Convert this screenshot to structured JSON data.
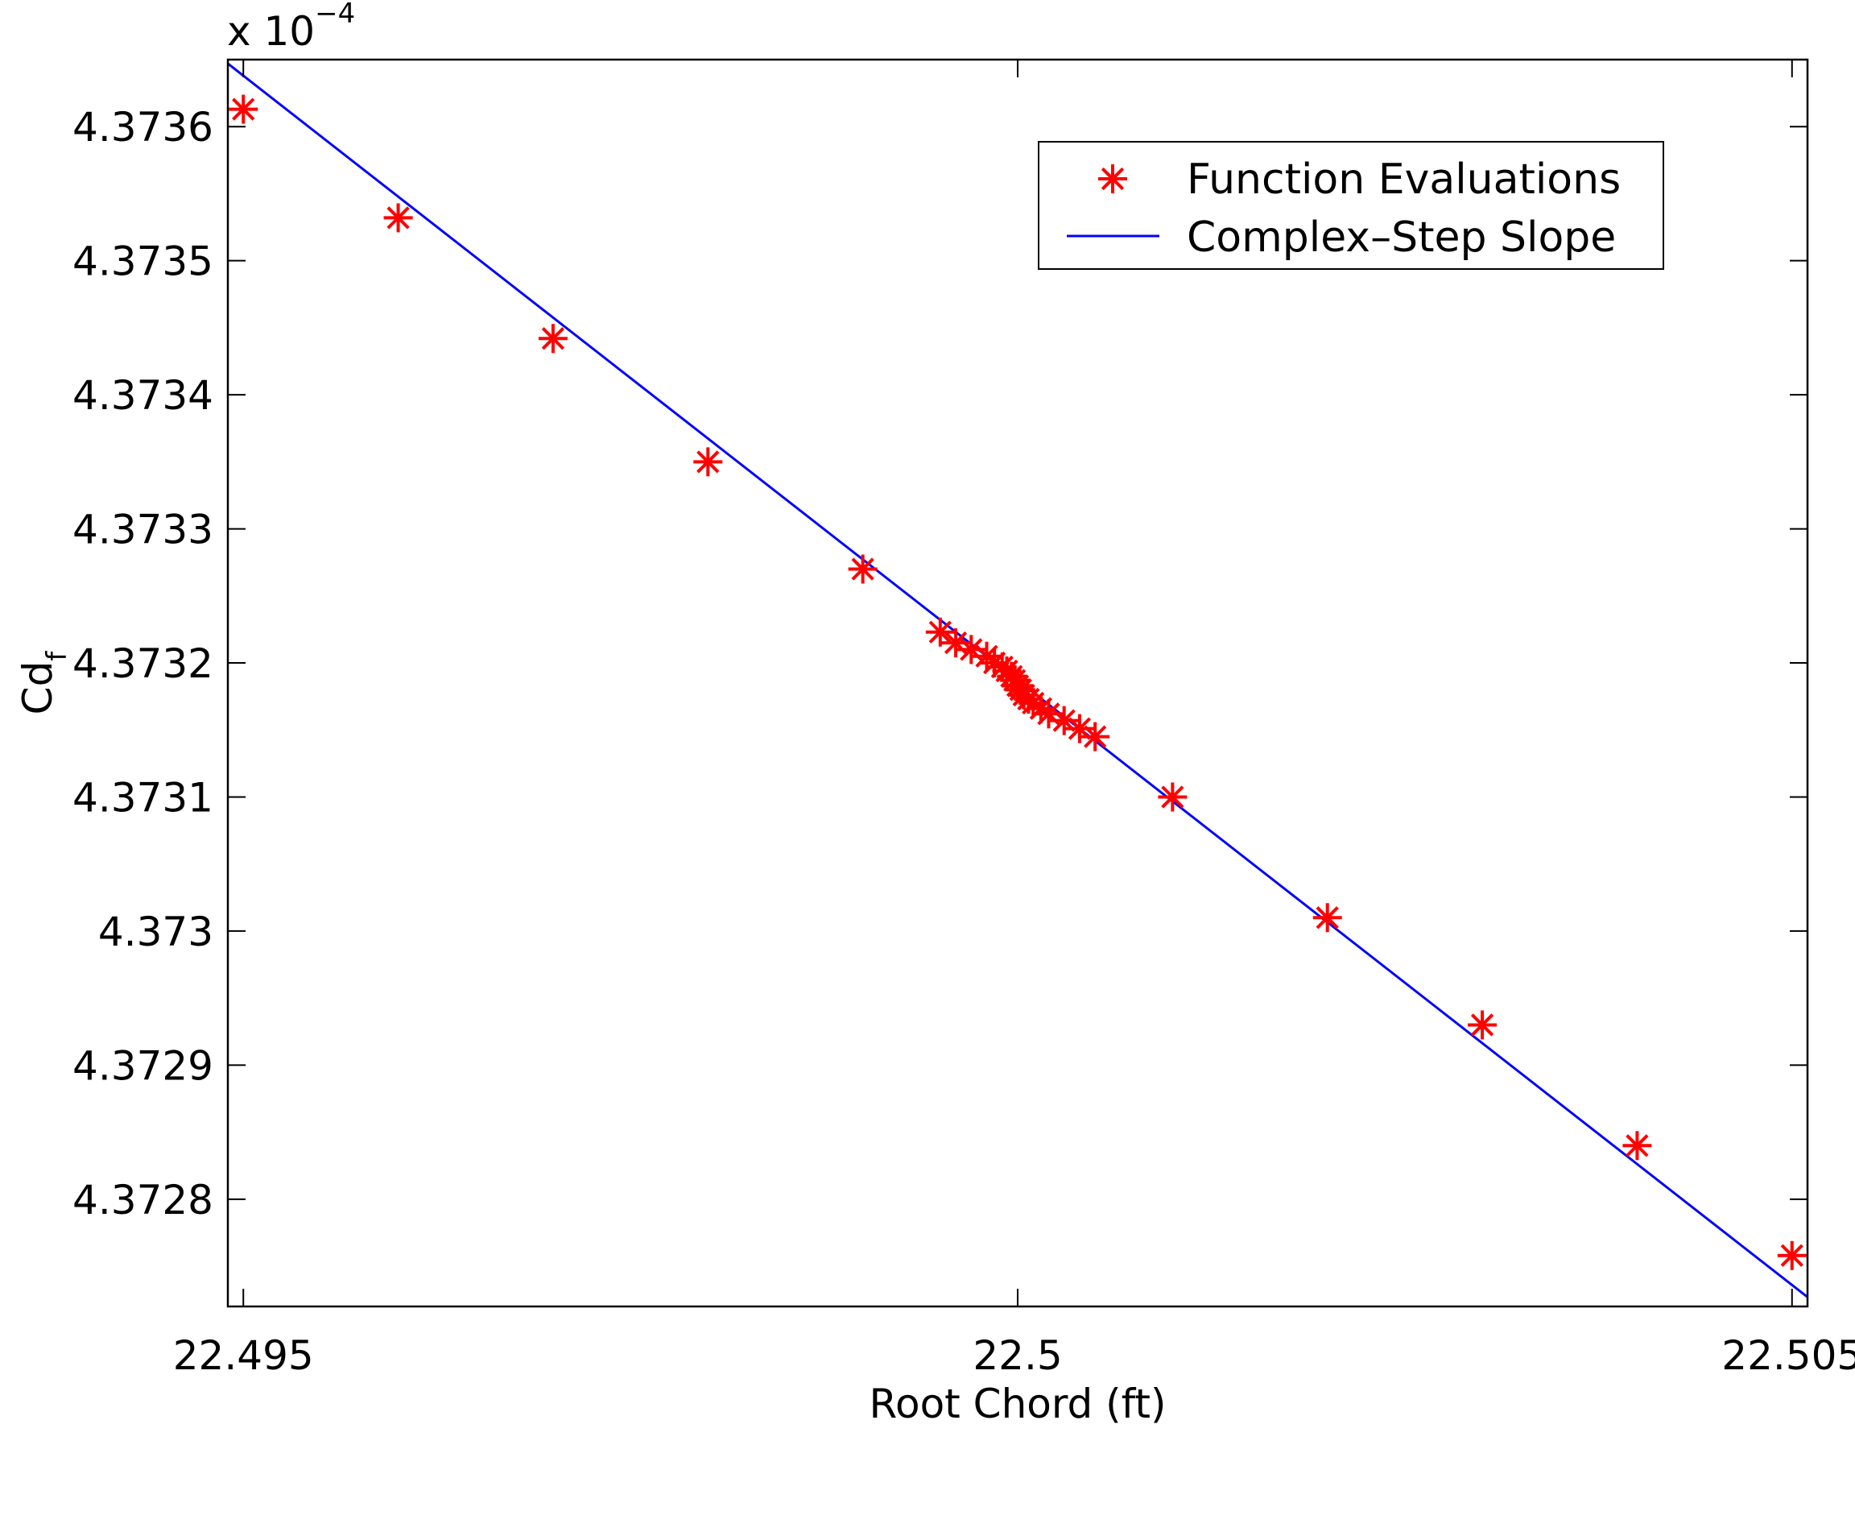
{
  "chart_data": {
    "type": "scatter",
    "title": "",
    "xlabel": "Root Chord (ft)",
    "ylabel_main": "Cd",
    "ylabel_sub": "f",
    "xlim": [
      22.4949,
      22.5051
    ],
    "ylim": [
      0.000437272,
      0.000437365
    ],
    "grid": false,
    "legend_position": "top-right",
    "y_scale_text": "x 10",
    "y_scale_exponent": "−4",
    "x_ticks": [
      22.495,
      22.5,
      22.505
    ],
    "x_tick_labels": [
      "22.495",
      "22.5",
      "22.505"
    ],
    "y_ticks": [
      0.00043728,
      0.00043729,
      0.0004373,
      0.00043731,
      0.00043732,
      0.00043733,
      0.00043734,
      0.00043735,
      0.00043736
    ],
    "y_tick_labels": [
      "4.3728",
      "4.3729",
      "4.373",
      "4.3731",
      "4.3732",
      "4.3733",
      "4.3734",
      "4.3735",
      "4.3736"
    ],
    "series": [
      {
        "name": "Function Evaluations",
        "marker": "asterisk",
        "color": "#ff0000",
        "x": [
          22.495,
          22.496,
          22.497,
          22.498,
          22.499,
          22.4995,
          22.4996,
          22.4997,
          22.4998,
          22.49985,
          22.4999,
          22.49993,
          22.49996,
          22.49998,
          22.5,
          22.50002,
          22.50004,
          22.50007,
          22.5001,
          22.50015,
          22.5002,
          22.5003,
          22.5004,
          22.5005,
          22.501,
          22.502,
          22.503,
          22.504,
          22.505
        ],
        "y": [
          0.0004373613,
          0.0004373532,
          0.0004373442,
          0.000437335,
          0.000437327,
          0.0004373223,
          0.0004373215,
          0.000437321,
          0.0004373205,
          0.00043732,
          0.0004373197,
          0.0004373194,
          0.000437319,
          0.0004373187,
          0.0004373183,
          0.000437318,
          0.0004373176,
          0.0004373173,
          0.000437317,
          0.0004373166,
          0.0004373162,
          0.0004373157,
          0.0004373151,
          0.0004373145,
          0.00043731,
          0.000437301,
          0.000437293,
          0.000437284,
          0.0004372758
        ]
      },
      {
        "name": "Complex–Step Slope",
        "marker": "line",
        "color": "#0000ff",
        "x": [
          22.4949,
          22.5051
        ],
        "y": [
          0.0004373647,
          0.0004372727
        ]
      }
    ]
  }
}
